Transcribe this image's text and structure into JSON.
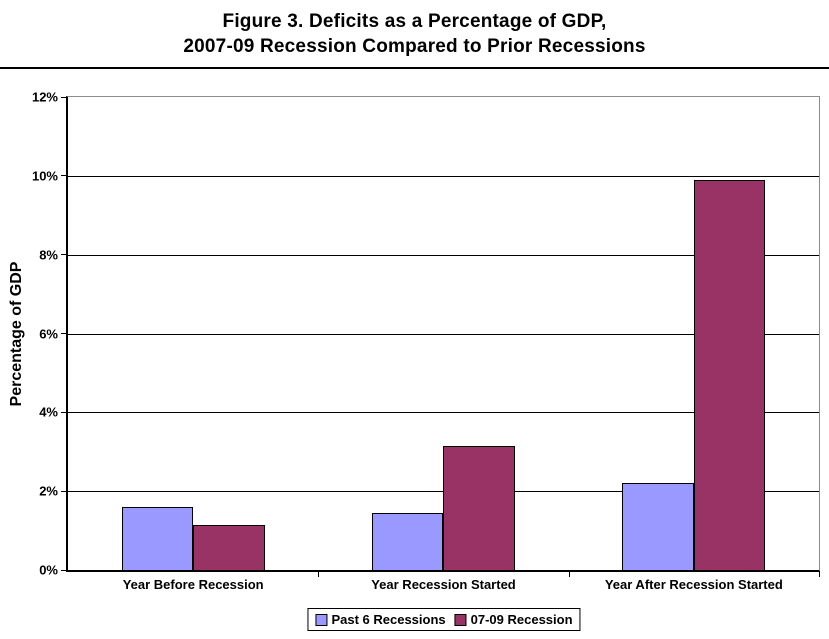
{
  "title": {
    "line1": "Figure 3. Deficits as a Percentage of GDP,",
    "line2": "2007-09 Recession Compared to Prior Recessions"
  },
  "chart_data": {
    "type": "bar",
    "title": "Figure 3. Deficits as a Percentage of GDP, 2007-09 Recession Compared to Prior Recessions",
    "categories": [
      "Year Before Recession",
      "Year Recession Started",
      "Year After Recession Started"
    ],
    "series": [
      {
        "name": "Past 6 Recessions",
        "color": "#9999FF",
        "values": [
          1.6,
          1.45,
          2.2
        ]
      },
      {
        "name": "07-09 Recession",
        "color": "#993366",
        "values": [
          1.15,
          3.15,
          9.9
        ]
      }
    ],
    "xlabel": "",
    "ylabel": "Percentage of GDP",
    "ylim": [
      0,
      12
    ],
    "yticks": [
      "0%",
      "2%",
      "4%",
      "6%",
      "8%",
      "10%",
      "12%"
    ],
    "grid": true,
    "legend_position": "bottom",
    "colors": {
      "bar_border": "#000000",
      "gridline": "#000000",
      "plot_border": "#8c8c8c",
      "axis": "#000000"
    }
  }
}
